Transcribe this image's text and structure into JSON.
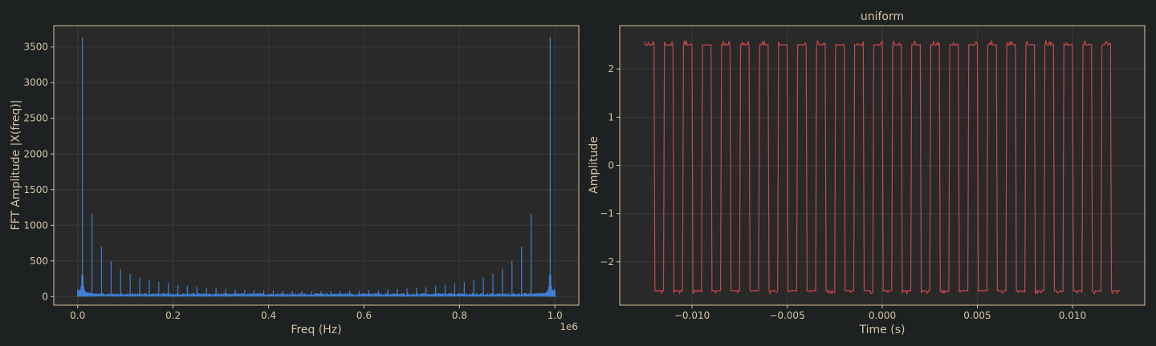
{
  "figure": {
    "background": "#1e2122",
    "axes_face": "#292929",
    "spine_color": "#d8c49a",
    "grid_color": "#3a3a3a",
    "text_color": "#d2c4a4"
  },
  "chart_data": [
    {
      "type": "line",
      "title": "",
      "xlabel": "Freq (Hz)",
      "ylabel": "FFT Amplitude |X(freq)|",
      "x_offset_label": "1e6",
      "xlim": [
        -0.05,
        1.05
      ],
      "ylim": [
        -120,
        3800
      ],
      "xticks": [
        0.0,
        0.2,
        0.4,
        0.6,
        0.8,
        1.0
      ],
      "xtick_labels": [
        "0.0",
        "0.2",
        "0.4",
        "0.6",
        "0.8",
        "1.0"
      ],
      "yticks": [
        0,
        500,
        1000,
        1500,
        2000,
        2500,
        3000,
        3500
      ],
      "ytick_labels": [
        "0",
        "500",
        "1000",
        "1500",
        "2000",
        "2500",
        "3000",
        "3500"
      ],
      "grid": true,
      "line_color": "#3f7fd6",
      "series": [
        {
          "values_note": "",
          "x": [
            0.0,
            0.01,
            0.02,
            0.03,
            0.05,
            0.07,
            0.09,
            0.11,
            0.13,
            0.15,
            0.17,
            0.19,
            0.21,
            0.23,
            0.25,
            0.27,
            0.29,
            0.31,
            0.33,
            0.35,
            0.37,
            0.39,
            0.41,
            0.43,
            0.45,
            0.47,
            0.49,
            0.51,
            0.53,
            0.55,
            0.57,
            0.59,
            0.61,
            0.63,
            0.65,
            0.67,
            0.69,
            0.71,
            0.73,
            0.75,
            0.77,
            0.79,
            0.81,
            0.83,
            0.85,
            0.87,
            0.89,
            0.91,
            0.93,
            0.95,
            0.97,
            0.99,
            1.0
          ],
          "y": [
            100,
            3640,
            30,
            1160,
            700,
            500,
            390,
            320,
            270,
            235,
            205,
            185,
            165,
            150,
            135,
            125,
            115,
            108,
            100,
            95,
            90,
            86,
            83,
            80,
            78,
            77,
            76,
            77,
            78,
            80,
            83,
            86,
            90,
            95,
            100,
            108,
            115,
            125,
            135,
            150,
            165,
            185,
            205,
            235,
            270,
            320,
            390,
            500,
            700,
            1160,
            30,
            3640,
            100
          ]
        }
      ]
    },
    {
      "type": "line",
      "title": "uniform",
      "xlabel": "Time (s)",
      "ylabel": "Amplitude",
      "xlim": [
        -0.0138,
        0.0138
      ],
      "ylim": [
        -2.9,
        2.9
      ],
      "xticks": [
        -0.01,
        -0.005,
        0.0,
        0.005,
        0.01
      ],
      "xtick_labels": [
        "−0.010",
        "−0.005",
        "0.000",
        "0.005",
        "0.010"
      ],
      "yticks": [
        -2,
        -1,
        0,
        1,
        2
      ],
      "ytick_labels": [
        "−2",
        "−1",
        "0",
        "1",
        "2"
      ],
      "grid": true,
      "line_color": "#c8474b",
      "series": [
        {
          "x_start": -0.0125,
          "x_end": 0.0125,
          "period": 0.001,
          "high": 2.5,
          "low": -2.6,
          "x_first_fall": -0.012,
          "high_jitter_peak": 2.58,
          "low_jitter_peak": -2.66
        }
      ]
    }
  ]
}
